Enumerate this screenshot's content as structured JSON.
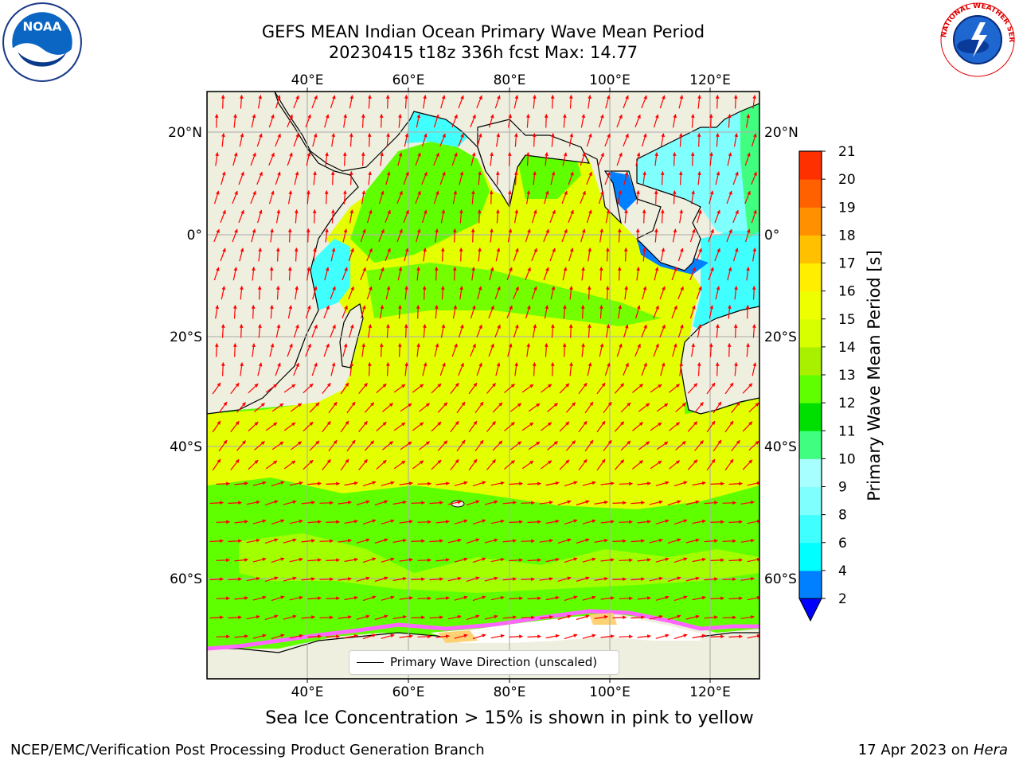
{
  "title": {
    "line1": "GEFS MEAN Indian Ocean Primary Wave Mean Period",
    "line2": "20230415 t18z 336h fcst   Max: 14.77"
  },
  "logos": {
    "left": {
      "icon": "noaa-logo-icon",
      "text": "NOAA"
    },
    "right": {
      "icon": "nws-logo-icon",
      "text": "NATIONAL WEATHER SERVICE"
    }
  },
  "map": {
    "lon_ticks": [
      "40°E",
      "60°E",
      "80°E",
      "100°E",
      "120°E"
    ],
    "lat_ticks": [
      "20°N",
      "0°",
      "20°S",
      "40°S",
      "60°S"
    ],
    "land_color": "#efefdf",
    "arrow_color": "#ff0000",
    "legend_label": "Primary Wave Direction (unscaled)"
  },
  "colorbar": {
    "label": "Primary Wave Mean Period [s]",
    "tick_labels": [
      "2",
      "4",
      "6",
      "8",
      "9",
      "10",
      "11",
      "12",
      "13",
      "14",
      "15",
      "16",
      "17",
      "18",
      "19",
      "20",
      "21"
    ],
    "colors": [
      "#0080ff",
      "#00ffff",
      "#40ffff",
      "#80ffff",
      "#a8ffff",
      "#40ff80",
      "#00e000",
      "#60ff00",
      "#a8f000",
      "#d8ff00",
      "#eeff00",
      "#ffee00",
      "#ffc000",
      "#ff9000",
      "#ff6000",
      "#ff3000"
    ],
    "extend_color": "#0000ff"
  },
  "caption": "Sea Ice Concentration > 15% is shown in pink to yellow",
  "footer": {
    "left": "NCEP/EMC/Verification Post Processing Product Generation Branch",
    "right_date": "17 Apr 2023 on ",
    "right_host": "Hera"
  }
}
